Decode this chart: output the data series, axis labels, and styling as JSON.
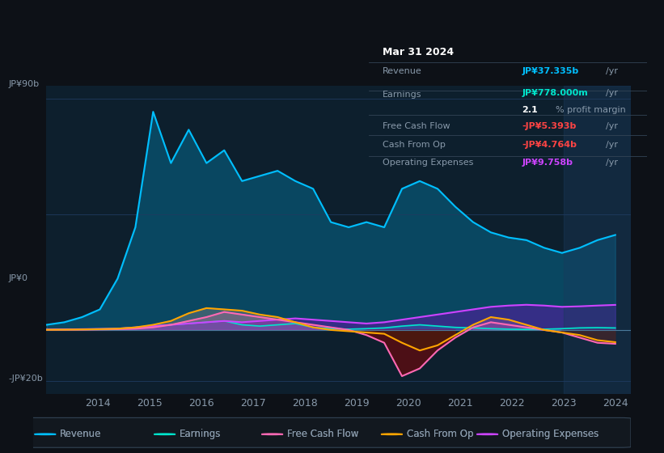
{
  "bg_color": "#0d1117",
  "plot_bg_color": "#0d1f2d",
  "plot_bg_color2": "#162032",
  "grid_color": "#1e3a5f",
  "text_color": "#8899aa",
  "title_color": "#ffffff",
  "ylabel_top": "JP¥90b",
  "ylabel_zero": "JP¥0",
  "ylabel_bottom": "-JP¥20b",
  "x_labels": [
    "2014",
    "2015",
    "2016",
    "2017",
    "2018",
    "2019",
    "2020",
    "2021",
    "2022",
    "2023",
    "2024"
  ],
  "legend_items": [
    {
      "label": "Revenue",
      "color": "#00bfff"
    },
    {
      "label": "Earnings",
      "color": "#00e5cc"
    },
    {
      "label": "Free Cash Flow",
      "color": "#ff69b4"
    },
    {
      "label": "Cash From Op",
      "color": "#ffa500"
    },
    {
      "label": "Operating Expenses",
      "color": "#cc44ff"
    }
  ],
  "tooltip": {
    "date": "Mar 31 2024",
    "revenue_label": "Revenue",
    "revenue_value": "JP¥37.335b",
    "revenue_color": "#00bfff",
    "earnings_label": "Earnings",
    "earnings_value": "JP¥778.000m",
    "earnings_color": "#00e5cc",
    "profit_margin": "2.1% profit margin",
    "fcf_label": "Free Cash Flow",
    "fcf_value": "-JP¥5.393b",
    "fcf_color": "#ff4444",
    "cashop_label": "Cash From Op",
    "cashop_value": "-JP¥4.764b",
    "cashop_color": "#ff4444",
    "opex_label": "Operating Expenses",
    "opex_value": "JP¥9.758b",
    "opex_color": "#cc44ff"
  },
  "revenue": [
    2,
    3,
    5,
    8,
    20,
    40,
    85,
    65,
    78,
    65,
    70,
    58,
    60,
    62,
    58,
    55,
    42,
    40,
    42,
    40,
    55,
    58,
    55,
    48,
    42,
    38,
    36,
    35,
    32,
    30,
    32,
    35,
    37
  ],
  "earnings": [
    0.1,
    0.2,
    0.3,
    0.4,
    0.5,
    1.0,
    1.5,
    2.0,
    2.5,
    3.0,
    3.5,
    2.0,
    1.5,
    2.0,
    2.5,
    1.0,
    0.5,
    0.3,
    0.5,
    0.8,
    1.5,
    2.0,
    1.5,
    1.0,
    0.8,
    0.5,
    0.3,
    0.2,
    0.3,
    0.5,
    0.8,
    0.9,
    0.78
  ],
  "free_cash_flow": [
    0.1,
    0.1,
    0.1,
    0.2,
    0.3,
    0.5,
    1.0,
    2.0,
    3.5,
    5.0,
    7.0,
    6.0,
    5.0,
    4.0,
    3.0,
    2.0,
    1.0,
    0.0,
    -2.0,
    -5.0,
    -18.0,
    -15.0,
    -8.0,
    -3.0,
    1.0,
    3.0,
    2.0,
    1.0,
    0.0,
    -1.0,
    -3.0,
    -5.0,
    -5.4
  ],
  "cash_from_op": [
    0.05,
    0.1,
    0.2,
    0.3,
    0.5,
    1.0,
    2.0,
    3.5,
    6.5,
    8.5,
    8.0,
    7.5,
    6.0,
    5.0,
    3.0,
    1.0,
    0.0,
    -0.5,
    -1.0,
    -1.5,
    -5.0,
    -8.0,
    -6.0,
    -2.0,
    2.0,
    5.0,
    4.0,
    2.0,
    0.0,
    -1.0,
    -2.0,
    -4.0,
    -4.764
  ],
  "op_expenses": [
    0.1,
    0.2,
    0.3,
    0.4,
    0.5,
    1.0,
    1.5,
    2.0,
    2.5,
    3.0,
    3.5,
    3.0,
    3.5,
    4.0,
    4.5,
    4.0,
    3.5,
    3.0,
    2.5,
    3.0,
    4.0,
    5.0,
    6.0,
    7.0,
    8.0,
    9.0,
    9.5,
    9.8,
    9.5,
    9.0,
    9.2,
    9.5,
    9.758
  ]
}
